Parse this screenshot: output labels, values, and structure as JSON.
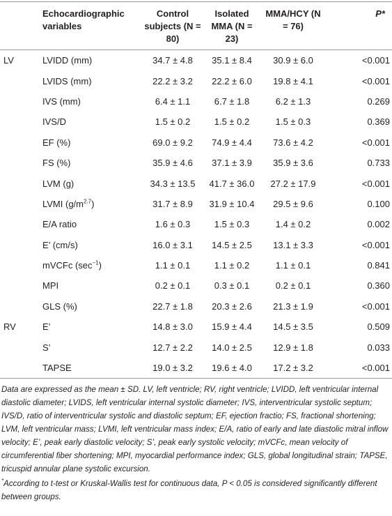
{
  "table": {
    "header": [
      "",
      "Echocardiographic variables",
      "Control subjects (N = 80)",
      "Isolated MMA (N = 23)",
      "MMA/HCY (N = 76)",
      "P*"
    ],
    "rows": [
      {
        "group": "LV",
        "variable": "LVIDD (mm)",
        "cells": [
          "34.7 ± 4.8",
          "35.1 ± 8.4",
          "30.9 ± 6.0",
          "<0.001"
        ]
      },
      {
        "variable": "LVIDS (mm)",
        "cells": [
          "22.2 ± 3.2",
          "22.2 ± 6.0",
          "19.8 ± 4.1",
          "<0.001"
        ]
      },
      {
        "variable": "IVS (mm)",
        "cells": [
          "6.4 ± 1.1",
          "6.7 ± 1.8",
          "6.2 ± 1.3",
          "0.269"
        ]
      },
      {
        "variable": "IVS/D",
        "cells": [
          "1.5 ± 0.2",
          "1.5 ± 0.2",
          "1.5 ± 0.3",
          "0.369"
        ]
      },
      {
        "variable": "EF (%)",
        "cells": [
          "69.0 ± 9.2",
          "74.9 ± 4.4",
          "73.6 ± 4.2",
          "<0.001"
        ]
      },
      {
        "variable": "FS (%)",
        "cells": [
          "35.9 ± 4.6",
          "37.1 ± 3.9",
          "35.9 ± 3.6",
          "0.733"
        ]
      },
      {
        "variable": "LVM (g)",
        "cells": [
          "34.3 ± 13.5",
          "41.7 ± 36.0",
          "27.2 ± 17.9",
          "<0.001"
        ]
      },
      {
        "variable": [
          "LVMI (g/m",
          {
            "sup": "2.7"
          },
          ")"
        ],
        "cells": [
          "31.7 ± 8.9",
          "31.9 ± 10.4",
          "29.5 ± 9.6",
          "0.100"
        ]
      },
      {
        "variable": "E/A ratio",
        "cells": [
          "1.6 ± 0.3",
          "1.5 ± 0.3",
          "1.4 ± 0.2",
          "0.002"
        ]
      },
      {
        "variable": "E’ (cm/s)",
        "cells": [
          "16.0 ± 3.1",
          "14.5 ± 2.5",
          "13.1 ± 3.3",
          "<0.001"
        ]
      },
      {
        "variable": [
          "mVCFc (sec",
          {
            "sup": "−1"
          },
          ")"
        ],
        "cells": [
          "1.1 ± 0.1",
          "1.1 ± 0.2",
          "1.1 ± 0.1",
          "0.841"
        ]
      },
      {
        "variable": "MPI",
        "cells": [
          "0.2 ± 0.1",
          "0.3 ± 0.1",
          "0.2 ± 0.1",
          "0.360"
        ]
      },
      {
        "variable": "GLS (%)",
        "cells": [
          "22.7 ± 1.8",
          "20.3 ± 2.6",
          "21.3 ± 1.9",
          "<0.001"
        ]
      },
      {
        "group": "RV",
        "variable": "E’",
        "cells": [
          "14.8 ± 3.0",
          "15.9 ± 4.4",
          "14.5 ± 3.5",
          "0.509"
        ]
      },
      {
        "variable": "S’",
        "cells": [
          "12.7 ± 2.2",
          "14.0 ± 2.5",
          "12.9 ± 1.8",
          "0.033"
        ]
      },
      {
        "variable": "TAPSE",
        "cells": [
          "19.0 ± 3.2",
          "19.6 ± 4.0",
          "17.2 ± 3.2",
          "<0.001"
        ]
      }
    ]
  },
  "notes": [
    "Data are expressed as the mean ± SD. LV, left ventricle; RV, right ventricle; LVIDD, left ventricular internal diastolic diameter; LVIDS, left ventricular internal systolic diameter; IVS, interventricular systolic septum; IVS/D, ratio of interventricular systolic and diastolic septum; EF, ejection fractio; FS, fractional shortening; LVM, left ventricular mass; LVMI, left ventricular mass index; E/A, ratio of early and late diastolic mitral inflow velocity; E’, peak early diastolic velocity; S’, peak early systolic velocity; mVCFc, mean velocity of circumferential fiber shortening; MPI, myocardial performance index; GLS, global longitudinal strain; TAPSE, tricuspid annular plane systolic excursion.",
    [
      {
        "sup": "*"
      },
      "According to t-test or Kruskal-Wallis test for continuous data, P < 0.05 is considered significantly different between groups."
    ]
  ]
}
